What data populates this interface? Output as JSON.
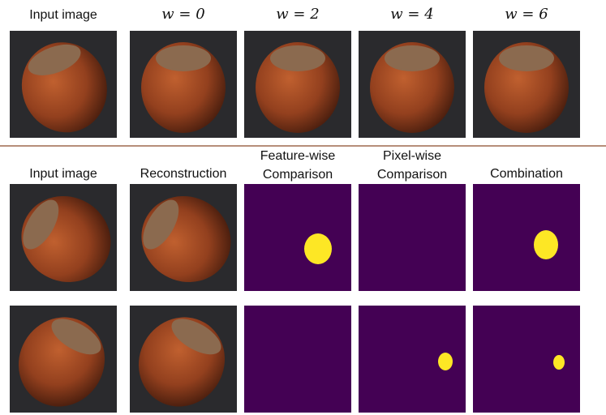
{
  "top_row": {
    "headers": [
      "Input image",
      "w = 0",
      "w = 2",
      "w = 4",
      "w = 6"
    ]
  },
  "bottom_rows": {
    "headers": [
      [
        "Input image"
      ],
      [
        "Reconstruction"
      ],
      [
        "Feature-wise",
        "Comparison"
      ],
      [
        "Pixel-wise",
        "Comparison"
      ],
      [
        "Combination"
      ]
    ]
  }
}
